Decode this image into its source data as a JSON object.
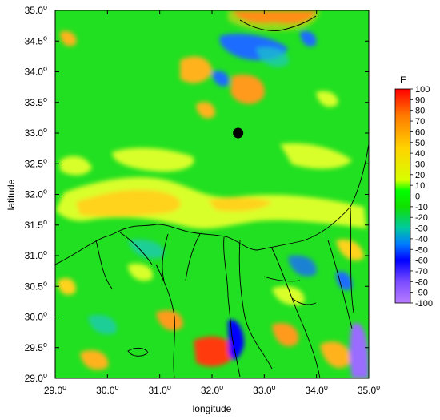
{
  "map": {
    "x_label": "longitude",
    "y_label": "latitude",
    "degree_symbol": "o",
    "x_ticks": [
      "29.0",
      "30.0",
      "31.0",
      "32.0",
      "33.0",
      "34.0",
      "35.0"
    ],
    "y_ticks": [
      "29.0",
      "29.5",
      "30.0",
      "30.5",
      "31.0",
      "31.5",
      "32.0",
      "32.5",
      "33.0",
      "33.5",
      "34.0",
      "34.5",
      "35.0"
    ],
    "x_range": [
      29.0,
      35.0
    ],
    "y_range": [
      29.0,
      35.0
    ],
    "marker": {
      "lon": 32.5,
      "lat": 33.0,
      "color": "#000000"
    },
    "background_field": "green (near 0)",
    "coastline_color": "#000000"
  },
  "colorbar": {
    "title": "E",
    "ticks": [
      "100",
      "90",
      "80",
      "70",
      "60",
      "50",
      "40",
      "30",
      "20",
      "10",
      "0",
      "-10",
      "-20",
      "-30",
      "-40",
      "-50",
      "-60",
      "-70",
      "-80",
      "-90",
      "-100"
    ],
    "range": [
      -100,
      100
    ],
    "stops": [
      {
        "value": 100,
        "color": "#ff0000"
      },
      {
        "value": 75,
        "color": "#ff7a00"
      },
      {
        "value": 45,
        "color": "#ffd200"
      },
      {
        "value": 15,
        "color": "#d7ff00"
      },
      {
        "value": 5,
        "color": "#00ff00"
      },
      {
        "value": -10,
        "color": "#10e000"
      },
      {
        "value": -30,
        "color": "#00c8a0"
      },
      {
        "value": -45,
        "color": "#007dff"
      },
      {
        "value": -60,
        "color": "#0000ff"
      },
      {
        "value": -80,
        "color": "#7a4cff"
      },
      {
        "value": -100,
        "color": "#b87cff"
      }
    ]
  }
}
